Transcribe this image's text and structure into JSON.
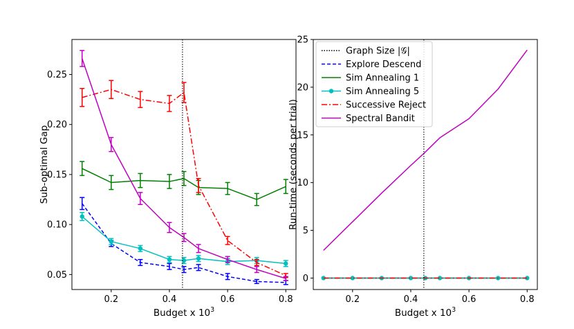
{
  "chart_data": [
    {
      "type": "line",
      "title": "",
      "xlabel": "Budget x 10",
      "xlabel_sup": "3",
      "ylabel": "Sub-optimal Gap",
      "xlim": [
        0.065,
        0.835
      ],
      "ylim": [
        0.035,
        0.285
      ],
      "xticks": [
        0.2,
        0.4,
        0.6,
        0.8
      ],
      "xtick_labels": [
        "0.2",
        "0.4",
        "0.6",
        "0.8"
      ],
      "yticks": [
        0.05,
        0.1,
        0.15,
        0.2,
        0.25
      ],
      "ytick_labels": [
        "0.05",
        "0.10",
        "0.15",
        "0.20",
        "0.25"
      ],
      "vline_x": 0.445,
      "x": [
        0.1,
        0.2,
        0.3,
        0.4,
        0.45,
        0.5,
        0.6,
        0.7,
        0.8
      ],
      "series": [
        {
          "name": "Explore Descend",
          "color": "#0000ff",
          "dash": "5,3",
          "marker": "none",
          "values": [
            0.121,
            0.081,
            0.062,
            0.058,
            0.055,
            0.057,
            0.048,
            0.043,
            0.042
          ],
          "errors": [
            0.006,
            0.003,
            0.003,
            0.003,
            0.003,
            0.003,
            0.003,
            0.002,
            0.002
          ]
        },
        {
          "name": "Sim Annealing 1",
          "color": "#008000",
          "dash": "",
          "marker": "none",
          "values": [
            0.156,
            0.142,
            0.144,
            0.143,
            0.146,
            0.137,
            0.136,
            0.125,
            0.138
          ],
          "errors": [
            0.007,
            0.007,
            0.007,
            0.007,
            0.007,
            0.007,
            0.006,
            0.006,
            0.007
          ]
        },
        {
          "name": "Sim Annealing 5",
          "color": "#00bfbf",
          "dash": "",
          "marker": "circle",
          "values": [
            0.108,
            0.083,
            0.076,
            0.065,
            0.064,
            0.066,
            0.063,
            0.064,
            0.061
          ],
          "errors": [
            0.004,
            0.003,
            0.003,
            0.003,
            0.003,
            0.003,
            0.003,
            0.003,
            0.003
          ]
        },
        {
          "name": "Successive Reject",
          "color": "#ff0000",
          "dash": "8,3,2,3",
          "marker": "none",
          "values": [
            0.227,
            0.235,
            0.225,
            0.221,
            0.232,
            0.139,
            0.084,
            0.062,
            0.049
          ],
          "errors": [
            0.009,
            0.009,
            0.008,
            0.008,
            0.01,
            0.007,
            0.004,
            0.003,
            0.002
          ]
        },
        {
          "name": "Spectral Bandit",
          "color": "#bf00bf",
          "dash": "",
          "marker": "none",
          "values": [
            0.266,
            0.18,
            0.126,
            0.097,
            0.087,
            0.076,
            0.065,
            0.055,
            0.046
          ],
          "errors": [
            0.008,
            0.007,
            0.006,
            0.005,
            0.004,
            0.004,
            0.003,
            0.003,
            0.002
          ]
        }
      ]
    },
    {
      "type": "line",
      "title": "",
      "xlabel": "Budget x 10",
      "xlabel_sup": "3",
      "ylabel": "Run-time (seconds per trial)",
      "xlim": [
        0.065,
        0.835
      ],
      "ylim": [
        -1.2,
        25
      ],
      "xticks": [
        0.2,
        0.4,
        0.6,
        0.8
      ],
      "xtick_labels": [
        "0.2",
        "0.4",
        "0.6",
        "0.8"
      ],
      "yticks": [
        0,
        5,
        10,
        15,
        20,
        25
      ],
      "ytick_labels": [
        "0",
        "5",
        "10",
        "15",
        "20",
        "25"
      ],
      "vline_x": 0.445,
      "x": [
        0.1,
        0.2,
        0.3,
        0.4,
        0.45,
        0.5,
        0.6,
        0.7,
        0.8
      ],
      "series": [
        {
          "name": "Explore Descend",
          "color": "#0000ff",
          "dash": "5,3",
          "marker": "none",
          "values": [
            0,
            0,
            0,
            0,
            0,
            0,
            0,
            0,
            0
          ]
        },
        {
          "name": "Sim Annealing 1",
          "color": "#008000",
          "dash": "",
          "marker": "none",
          "values": [
            0,
            0,
            0,
            0,
            0,
            0,
            0,
            0,
            0
          ]
        },
        {
          "name": "Sim Annealing 5",
          "color": "#00bfbf",
          "dash": "",
          "marker": "circle",
          "values": [
            0,
            0,
            0,
            0,
            0,
            0,
            0,
            0,
            0
          ]
        },
        {
          "name": "Successive Reject",
          "color": "#ff0000",
          "dash": "8,3,2,3",
          "marker": "none",
          "values": [
            0,
            0,
            0,
            0,
            0,
            0,
            0,
            0,
            0
          ]
        },
        {
          "name": "Spectral Bandit",
          "color": "#bf00bf",
          "dash": "",
          "marker": "none",
          "values": [
            2.9,
            5.9,
            8.9,
            11.8,
            13.2,
            14.7,
            16.7,
            19.8,
            23.9
          ]
        }
      ],
      "legend": {
        "placement": "top-left",
        "entries": [
          {
            "label": "Graph Size |𝒢|",
            "color": "#000000",
            "dash": "1.5,2",
            "marker": "none"
          },
          {
            "label": "Explore Descend",
            "color": "#0000ff",
            "dash": "5,3",
            "marker": "none"
          },
          {
            "label": "Sim Annealing 1",
            "color": "#008000",
            "dash": "",
            "marker": "none"
          },
          {
            "label": "Sim Annealing 5",
            "color": "#00bfbf",
            "dash": "",
            "marker": "circle"
          },
          {
            "label": "Successive Reject",
            "color": "#ff0000",
            "dash": "8,3,2,3",
            "marker": "none"
          },
          {
            "label": "Spectral Bandit",
            "color": "#bf00bf",
            "dash": "",
            "marker": "none"
          }
        ]
      }
    }
  ]
}
